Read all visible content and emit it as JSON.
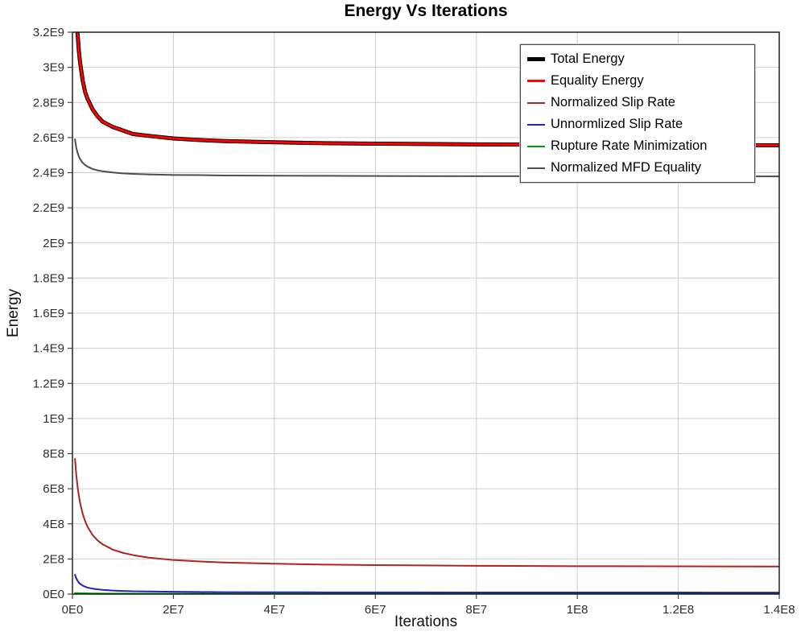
{
  "chart_data": {
    "type": "line",
    "title": "Energy Vs Iterations",
    "xlabel": "Iterations",
    "ylabel": "Energy",
    "xlim": [
      0,
      140000000.0
    ],
    "ylim": [
      0,
      3200000000.0
    ],
    "grid": true,
    "legend_position": "top-right",
    "background_color": "#ffffff",
    "grid_color": "#cfcfcf",
    "border_color": "#000000",
    "x_ticks": {
      "values": [
        0,
        20000000.0,
        40000000.0,
        60000000.0,
        80000000.0,
        100000000.0,
        120000000.0,
        140000000.0
      ],
      "labels": [
        "0E0",
        "2E7",
        "4E7",
        "6E7",
        "8E7",
        "1E8",
        "1.2E8",
        "1.4E8"
      ]
    },
    "y_ticks": {
      "values": [
        0,
        200000000.0,
        400000000.0,
        600000000.0,
        800000000.0,
        1000000000.0,
        1200000000.0,
        1400000000.0,
        1600000000.0,
        1800000000.0,
        2000000000.0,
        2200000000.0,
        2400000000.0,
        2600000000.0,
        2800000000.0,
        3000000000.0,
        3200000000.0
      ],
      "labels": [
        "0E0",
        "2E8",
        "4E8",
        "6E8",
        "8E8",
        "1E9",
        "1.2E9",
        "1.4E9",
        "1.6E9",
        "1.8E9",
        "2E9",
        "2.2E9",
        "2.4E9",
        "2.6E9",
        "2.8E9",
        "3E9",
        "3.2E9"
      ]
    },
    "x": [
      500000.0,
      750000.0,
      1000000.0,
      1250000.0,
      1500000.0,
      2000000.0,
      2500000.0,
      3000000.0,
      4000000.0,
      5000000.0,
      6000000.0,
      8000000.0,
      10000000.0,
      12000000.0,
      15000000.0,
      20000000.0,
      25000000.0,
      30000000.0,
      40000000.0,
      50000000.0,
      60000000.0,
      80000000.0,
      100000000.0,
      120000000.0,
      140000000.0
    ],
    "series": [
      {
        "name": "Total Energy",
        "color": "#000000",
        "width": 5,
        "values": [
          3560000000.0,
          3340000000.0,
          3200000000.0,
          3100000000.0,
          3030000000.0,
          2930000000.0,
          2860000000.0,
          2820000000.0,
          2760000000.0,
          2720000000.0,
          2690000000.0,
          2660000000.0,
          2640000000.0,
          2620000000.0,
          2610000000.0,
          2595000000.0,
          2586000000.0,
          2580000000.0,
          2573000000.0,
          2568000000.0,
          2565000000.0,
          2561000000.0,
          2559000000.0,
          2558000000.0,
          2556000000.0
        ]
      },
      {
        "name": "Equality Energy",
        "color": "#ff0000",
        "width": 3,
        "values": [
          3560000000.0,
          3340000000.0,
          3200000000.0,
          3100000000.0,
          3030000000.0,
          2930000000.0,
          2860000000.0,
          2820000000.0,
          2760000000.0,
          2720000000.0,
          2690000000.0,
          2660000000.0,
          2640000000.0,
          2620000000.0,
          2610000000.0,
          2595000000.0,
          2586000000.0,
          2580000000.0,
          2573000000.0,
          2568000000.0,
          2565000000.0,
          2561000000.0,
          2559000000.0,
          2558000000.0,
          2556000000.0
        ]
      },
      {
        "name": "Normalized Slip Rate",
        "color": "#b22222",
        "width": 2,
        "values": [
          770000000.0,
          681000000.0,
          615000000.0,
          563000000.0,
          522000000.0,
          460000000.0,
          416000000.0,
          383000000.0,
          336000000.0,
          305000000.0,
          283000000.0,
          253000000.0,
          235000000.0,
          222000000.0,
          208000000.0,
          194000000.0,
          186000000.0,
          180000000.0,
          173000000.0,
          168000000.0,
          165000000.0,
          161000000.0,
          159000000.0,
          158000000.0,
          157000000.0
        ]
      },
      {
        "name": "Unnormlized Slip Rate",
        "color": "#2222bb",
        "width": 2,
        "values": [
          110000000.0,
          90000000.0,
          76000000.0,
          66000000.0,
          59000000.0,
          49000000.0,
          42000000.0,
          37000000.0,
          31000000.0,
          27000000.0,
          24000000.0,
          20000000.0,
          18000000.0,
          16000000.0,
          15000000.0,
          13000000.0,
          12000000.0,
          11000000.0,
          10500000.0,
          10000000.0,
          9700000.0,
          9300000.0,
          9000000.0,
          8900000.0,
          8700000.0
        ]
      },
      {
        "name": "Rupture Rate Minimization",
        "color": "#00a000",
        "width": 2,
        "values": [
          6000000.0,
          5700000.0,
          5500000.0,
          5200000.0,
          5000000.0,
          4600000.0,
          4300000.0,
          4000000.0,
          3600000.0,
          3300000.0,
          3100000.0,
          2800000.0,
          2600000.0,
          2500000.0,
          2300000.0,
          2200000.0,
          2100000.0,
          2000000.0,
          1950000.0,
          1900000.0,
          1880000.0,
          1850000.0,
          1830000.0,
          1820000.0,
          1800000.0
        ]
      },
      {
        "name": "Normalized MFD Equality",
        "color": "#4d4d4d",
        "width": 2,
        "values": [
          2590000000.0,
          2543000000.0,
          2514000000.0,
          2493000000.0,
          2478000000.0,
          2457000000.0,
          2444000000.0,
          2434000000.0,
          2421000000.0,
          2413000000.0,
          2408000000.0,
          2401000000.0,
          2396000000.0,
          2393000000.0,
          2390000000.0,
          2387000000.0,
          2386000000.0,
          2384000000.0,
          2383000000.0,
          2382000000.0,
          2381000000.0,
          2380000000.0,
          2380000000.0,
          2380000000.0,
          2379000000.0
        ]
      }
    ]
  }
}
